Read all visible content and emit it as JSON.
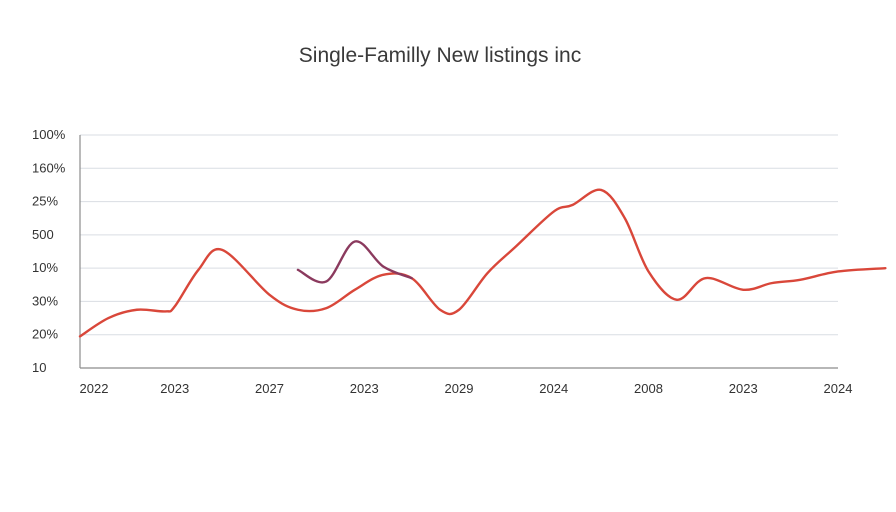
{
  "chart_data": {
    "type": "line",
    "title": "Single-Familly New listings inc",
    "xlabel": "",
    "ylabel": "",
    "y_tick_labels": [
      "100%",
      "160%",
      "25%",
      "500",
      "10%",
      "30%",
      "20%",
      "10"
    ],
    "x_tick_labels": [
      "2022",
      "2023",
      "2027",
      "2023",
      "2029",
      "2024",
      "2008",
      "2023",
      "2024"
    ],
    "ylim": [
      0,
      7
    ],
    "grid": true,
    "series": [
      {
        "color": "#d9473a",
        "x": [
          0,
          0.3,
          0.6,
          0.9,
          1.0,
          1.25,
          1.5,
          2.0,
          2.3,
          2.6,
          2.9,
          3.2,
          3.5,
          3.8,
          4.0,
          4.3,
          4.6,
          5.0,
          5.2,
          5.5,
          5.75,
          6.0,
          6.3,
          6.6,
          7.0,
          7.3,
          7.6,
          8.0,
          8.5
        ],
        "y": [
          0.95,
          1.5,
          1.75,
          1.7,
          1.85,
          2.95,
          3.55,
          2.2,
          1.75,
          1.8,
          2.35,
          2.8,
          2.7,
          1.75,
          1.75,
          2.85,
          3.65,
          4.7,
          4.9,
          5.35,
          4.5,
          2.9,
          2.05,
          2.7,
          2.35,
          2.55,
          2.65,
          2.9,
          3.0
        ]
      },
      {
        "color": "#8b3a5e",
        "x": [
          2.3,
          2.6,
          2.9,
          3.2,
          3.5
        ],
        "y": [
          2.95,
          2.6,
          3.8,
          3.05,
          2.7
        ]
      }
    ]
  }
}
